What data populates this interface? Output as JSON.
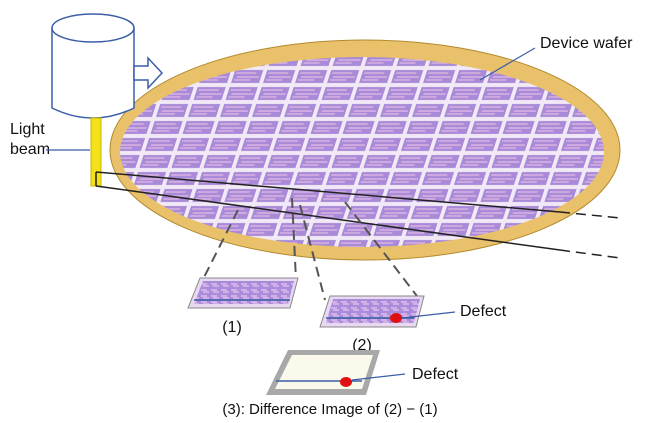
{
  "labels": {
    "device_wafer": "Device wafer",
    "light": "Light",
    "beam": "beam",
    "die_1": "(1)",
    "die_2": "(2)",
    "defect_1": "Defect",
    "defect_2": "Defect",
    "caption": "(3): Difference Image of (2) − (1)"
  }
}
